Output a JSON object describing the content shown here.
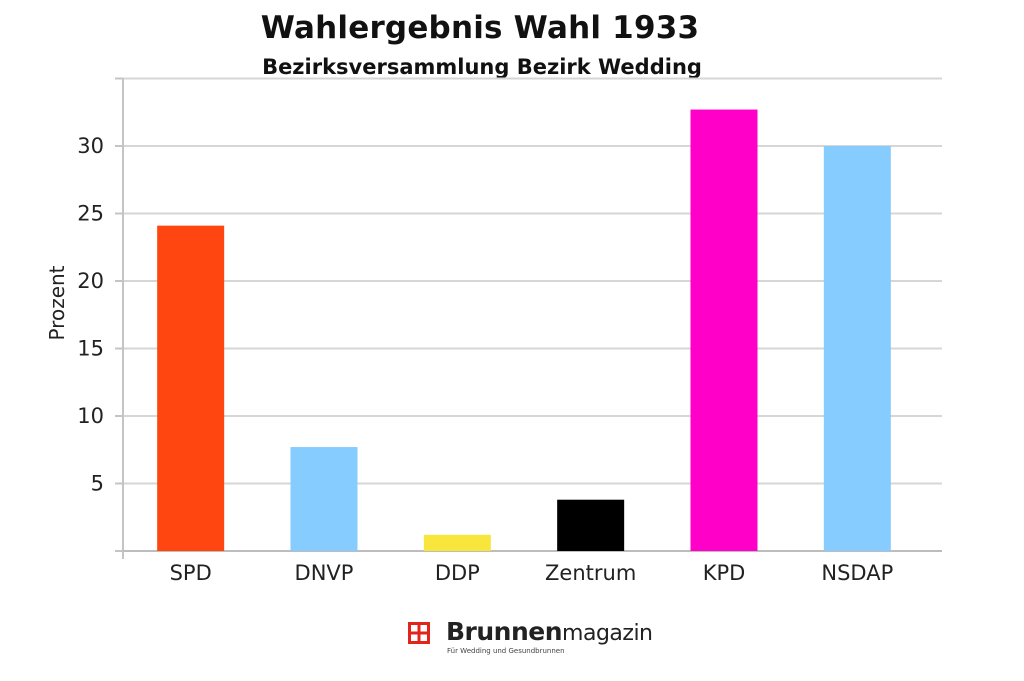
{
  "chart_data": {
    "type": "bar",
    "title": "Wahlergebnis Wahl 1933",
    "subtitle": "Bezirksversammlung Bezirk Wedding",
    "ylabel": "Prozent",
    "xlabel": "",
    "categories": [
      "SPD",
      "DNVP",
      "DDP",
      "Zentrum",
      "KPD",
      "NSDAP"
    ],
    "values": [
      24.1,
      7.7,
      1.2,
      3.8,
      32.7,
      30.0
    ],
    "colors": [
      "#ff4510",
      "#87ccff",
      "#f8e63c",
      "#000000",
      "#ff00c8",
      "#87ccff"
    ],
    "ylim": [
      0,
      35
    ],
    "yticks": [
      5,
      10,
      15,
      20,
      25,
      30
    ],
    "grid": true,
    "legend": "none"
  },
  "brand": {
    "name_bold": "Brunnen",
    "name_light": "magazin",
    "tagline": "Für Wedding und Gesundbrunnen",
    "logo_color": "#e0261c"
  }
}
